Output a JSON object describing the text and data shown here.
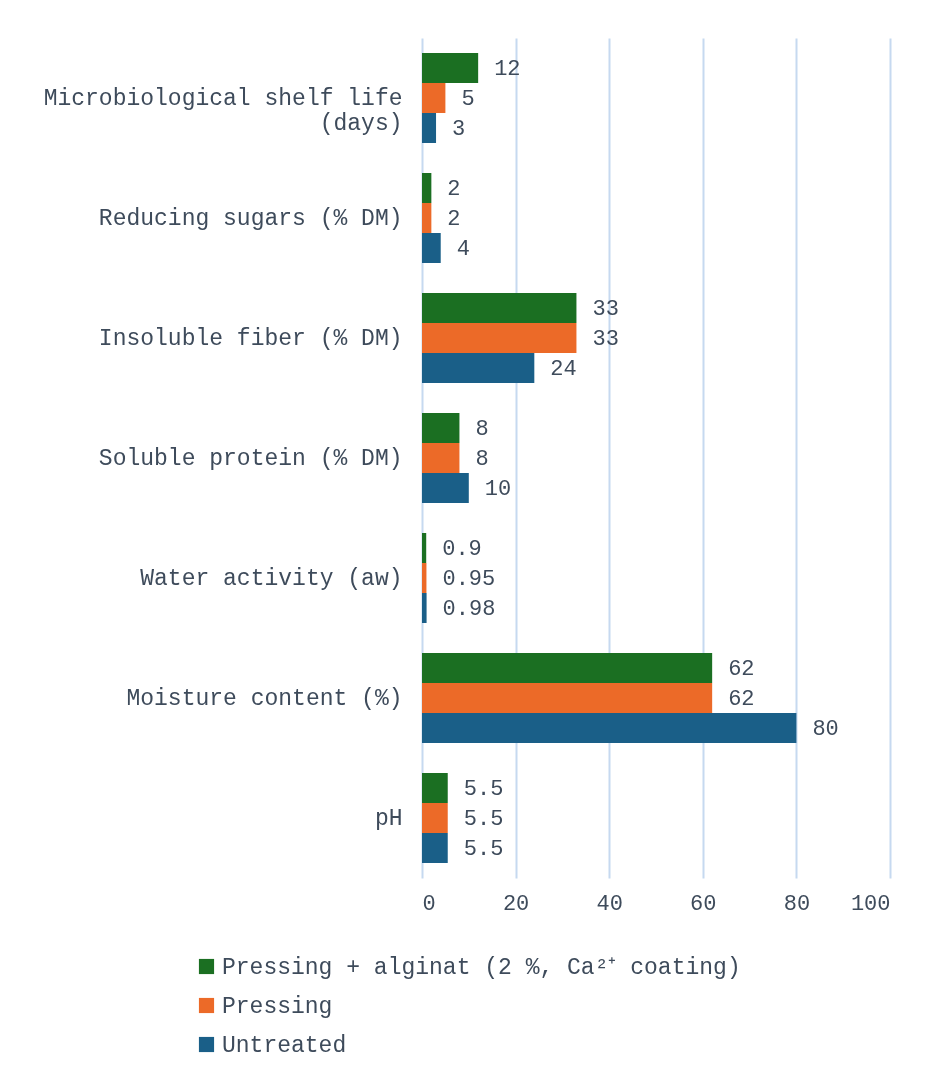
{
  "chart_data": {
    "type": "bar",
    "orientation": "horizontal",
    "categories": [
      "Microbiological shelf life (days)",
      "Reducing sugars (% DM)",
      "Insoluble fiber (% DM)",
      "Soluble protein (% DM)",
      "Water activity (aw)",
      "Moisture content (%)",
      "pH"
    ],
    "series": [
      {
        "name": "Pressing + alginat (2 %, Ca²⁺ coating)",
        "color": "#1b6f22",
        "values": [
          12,
          2,
          33,
          8,
          0.9,
          62,
          5.5
        ]
      },
      {
        "name": "Pressing",
        "color": "#ec6a28",
        "values": [
          5,
          2,
          33,
          8,
          0.95,
          62,
          5.5
        ]
      },
      {
        "name": "Untreated",
        "color": "#1a5f88",
        "values": [
          3,
          4,
          24,
          10,
          0.98,
          80,
          5.5
        ]
      }
    ],
    "xlim": [
      0,
      100
    ],
    "xticks": [
      0,
      20,
      40,
      60,
      80,
      100
    ],
    "grid": "x",
    "legend": "bottom",
    "data_labels": true
  }
}
